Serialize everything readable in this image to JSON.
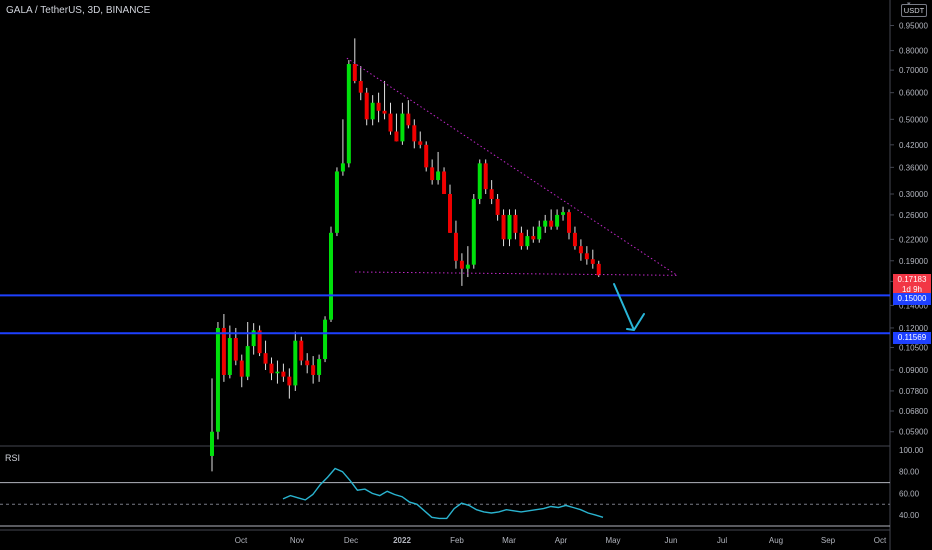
{
  "header": {
    "symbol_title": "GALA / TetherUS, 3D, BINANCE",
    "currency_badge": "USDT"
  },
  "price_scale": {
    "ticks": [
      "0.95000",
      "0.80000",
      "0.70000",
      "0.60000",
      "0.50000",
      "0.42000",
      "0.36000",
      "0.30000",
      "0.26000",
      "0.22000",
      "0.19000",
      "0.16500",
      "0.14000",
      "0.12000",
      "0.10500",
      "0.09000",
      "0.07800",
      "0.06800",
      "0.05900"
    ],
    "current_price": "0.17183",
    "countdown": "1d 9h",
    "level_1": "0.15000",
    "level_2": "0.11569"
  },
  "rsi_pane": {
    "label": "RSI",
    "ticks": [
      "100.00",
      "80.00",
      "60.00",
      "40.00"
    ]
  },
  "time_axis": {
    "labels": [
      "Oct",
      "Nov",
      "Dec",
      "2022",
      "Feb",
      "Mar",
      "Apr",
      "May",
      "Jun",
      "Jul",
      "Aug",
      "Sep",
      "Oct"
    ]
  },
  "colors": {
    "up": "#00e00b",
    "down": "#f00000",
    "level_line": "#1e40ff",
    "trendline": "#c028c8",
    "arrow": "#29b6d8",
    "rsi_line": "#2ab3cf"
  },
  "chart_data": {
    "type": "candlestick",
    "scale": "log",
    "y_range": [
      0.055,
      1.0
    ],
    "candles": [
      [
        0.05,
        0.085,
        0.045,
        0.059
      ],
      [
        0.059,
        0.125,
        0.056,
        0.12
      ],
      [
        0.12,
        0.132,
        0.083,
        0.087
      ],
      [
        0.087,
        0.122,
        0.085,
        0.112
      ],
      [
        0.112,
        0.12,
        0.093,
        0.096
      ],
      [
        0.096,
        0.1,
        0.08,
        0.086
      ],
      [
        0.086,
        0.125,
        0.084,
        0.106
      ],
      [
        0.106,
        0.124,
        0.1,
        0.118
      ],
      [
        0.118,
        0.122,
        0.099,
        0.101
      ],
      [
        0.101,
        0.11,
        0.09,
        0.094
      ],
      [
        0.094,
        0.098,
        0.084,
        0.088
      ],
      [
        0.088,
        0.096,
        0.082,
        0.089
      ],
      [
        0.089,
        0.094,
        0.083,
        0.086
      ],
      [
        0.086,
        0.091,
        0.074,
        0.081
      ],
      [
        0.081,
        0.117,
        0.078,
        0.11
      ],
      [
        0.11,
        0.113,
        0.093,
        0.096
      ],
      [
        0.096,
        0.101,
        0.088,
        0.093
      ],
      [
        0.093,
        0.099,
        0.082,
        0.087
      ],
      [
        0.087,
        0.1,
        0.083,
        0.097
      ],
      [
        0.097,
        0.13,
        0.095,
        0.127
      ],
      [
        0.127,
        0.24,
        0.125,
        0.23
      ],
      [
        0.23,
        0.36,
        0.225,
        0.35
      ],
      [
        0.35,
        0.5,
        0.34,
        0.37
      ],
      [
        0.37,
        0.75,
        0.36,
        0.73
      ],
      [
        0.73,
        0.87,
        0.64,
        0.65
      ],
      [
        0.65,
        0.72,
        0.57,
        0.6
      ],
      [
        0.6,
        0.62,
        0.48,
        0.5
      ],
      [
        0.5,
        0.59,
        0.48,
        0.56
      ],
      [
        0.56,
        0.6,
        0.49,
        0.53
      ],
      [
        0.53,
        0.65,
        0.5,
        0.52
      ],
      [
        0.52,
        0.56,
        0.45,
        0.46
      ],
      [
        0.46,
        0.52,
        0.43,
        0.43
      ],
      [
        0.43,
        0.56,
        0.42,
        0.52
      ],
      [
        0.52,
        0.57,
        0.47,
        0.48
      ],
      [
        0.48,
        0.5,
        0.41,
        0.43
      ],
      [
        0.43,
        0.46,
        0.41,
        0.42
      ],
      [
        0.42,
        0.43,
        0.35,
        0.36
      ],
      [
        0.36,
        0.38,
        0.32,
        0.33
      ],
      [
        0.33,
        0.4,
        0.32,
        0.35
      ],
      [
        0.35,
        0.36,
        0.3,
        0.3
      ],
      [
        0.3,
        0.32,
        0.23,
        0.23
      ],
      [
        0.23,
        0.25,
        0.18,
        0.19
      ],
      [
        0.19,
        0.2,
        0.16,
        0.18
      ],
      [
        0.18,
        0.21,
        0.17,
        0.185
      ],
      [
        0.185,
        0.3,
        0.18,
        0.29
      ],
      [
        0.29,
        0.38,
        0.28,
        0.37
      ],
      [
        0.37,
        0.38,
        0.3,
        0.31
      ],
      [
        0.31,
        0.33,
        0.28,
        0.29
      ],
      [
        0.29,
        0.3,
        0.25,
        0.26
      ],
      [
        0.26,
        0.27,
        0.21,
        0.22
      ],
      [
        0.22,
        0.27,
        0.21,
        0.26
      ],
      [
        0.26,
        0.27,
        0.22,
        0.23
      ],
      [
        0.23,
        0.24,
        0.205,
        0.21
      ],
      [
        0.21,
        0.235,
        0.205,
        0.225
      ],
      [
        0.225,
        0.24,
        0.215,
        0.22
      ],
      [
        0.22,
        0.25,
        0.215,
        0.24
      ],
      [
        0.24,
        0.26,
        0.23,
        0.25
      ],
      [
        0.25,
        0.27,
        0.235,
        0.24
      ],
      [
        0.24,
        0.27,
        0.235,
        0.26
      ],
      [
        0.26,
        0.275,
        0.25,
        0.265
      ],
      [
        0.265,
        0.27,
        0.22,
        0.23
      ],
      [
        0.23,
        0.24,
        0.205,
        0.21
      ],
      [
        0.21,
        0.22,
        0.19,
        0.2
      ],
      [
        0.2,
        0.21,
        0.185,
        0.192
      ],
      [
        0.192,
        0.205,
        0.18,
        0.186
      ],
      [
        0.186,
        0.19,
        0.17,
        0.172
      ]
    ],
    "horizontal_levels": [
      0.15,
      0.11569
    ],
    "rsi": {
      "range": [
        30,
        100
      ],
      "bands": [
        70,
        50,
        30
      ],
      "values": [
        55,
        58,
        56,
        54,
        59,
        68,
        75,
        83,
        80,
        72,
        63,
        64,
        60,
        58,
        62,
        59,
        57,
        52,
        50,
        44,
        38,
        37,
        37,
        46,
        51,
        49,
        45,
        43,
        42,
        43,
        45,
        44,
        43,
        44,
        45,
        46,
        48,
        47,
        49,
        47,
        45,
        42,
        40,
        38
      ]
    }
  }
}
